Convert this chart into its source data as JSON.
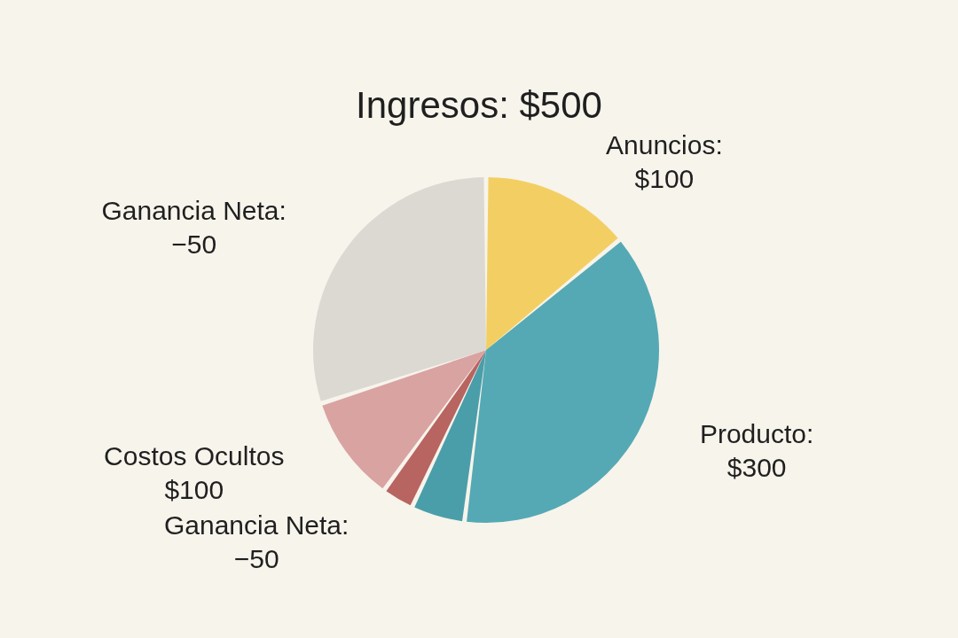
{
  "chart_data": {
    "type": "pie",
    "title": "Ingresos: $500",
    "categories": [
      "Anuncios: $100",
      "Producto: $300",
      null,
      "Ganancia Neta: −50",
      "Costos Ocultos $100",
      "Ganancia Neta: −50"
    ],
    "values": [
      14,
      38,
      5,
      3,
      10,
      30
    ],
    "colors": [
      "#f3cf63",
      "#55a9b4",
      "#4a9ea9",
      "#b86461",
      "#d9a3a2",
      "#dcd8d2"
    ]
  }
}
